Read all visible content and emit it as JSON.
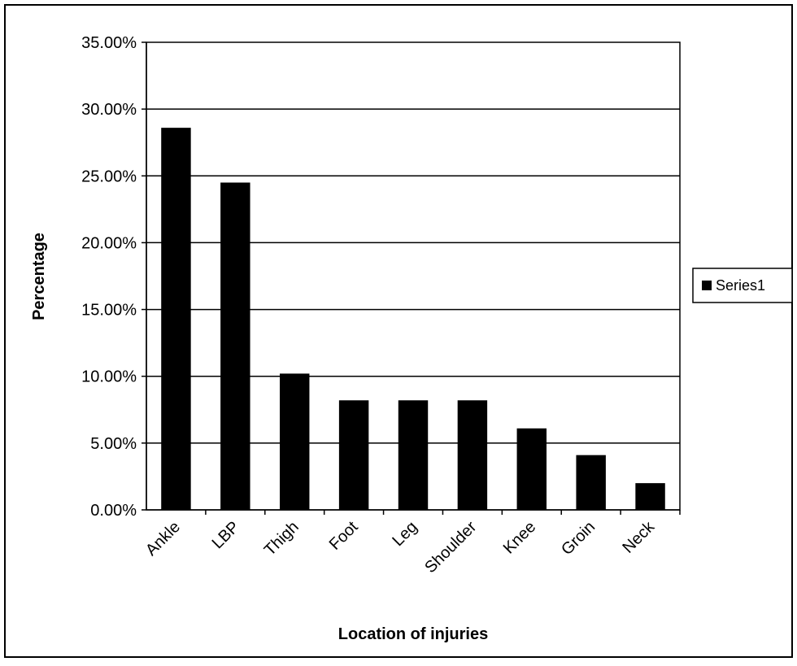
{
  "chart_data": {
    "type": "bar",
    "title": "",
    "xlabel": "Location of injuries",
    "ylabel": "Percentage",
    "categories": [
      "Ankle",
      "LBP",
      "Thigh",
      "Foot",
      "Leg",
      "Shoulder",
      "Knee",
      "Groin",
      "Neck"
    ],
    "series": [
      {
        "name": "Series1",
        "values": [
          28.6,
          24.5,
          10.2,
          8.2,
          8.2,
          8.2,
          6.1,
          4.1,
          2.0
        ]
      }
    ],
    "y_tick_labels": [
      "0.00%",
      "5.00%",
      "10.00%",
      "15.00%",
      "20.00%",
      "25.00%",
      "30.00%",
      "35.00%"
    ],
    "ylim": [
      0,
      35
    ],
    "grid": "horizontal",
    "legend_position": "right",
    "colors": {
      "bar": "#000000",
      "gridline": "#000000",
      "background": "#ffffff"
    }
  }
}
